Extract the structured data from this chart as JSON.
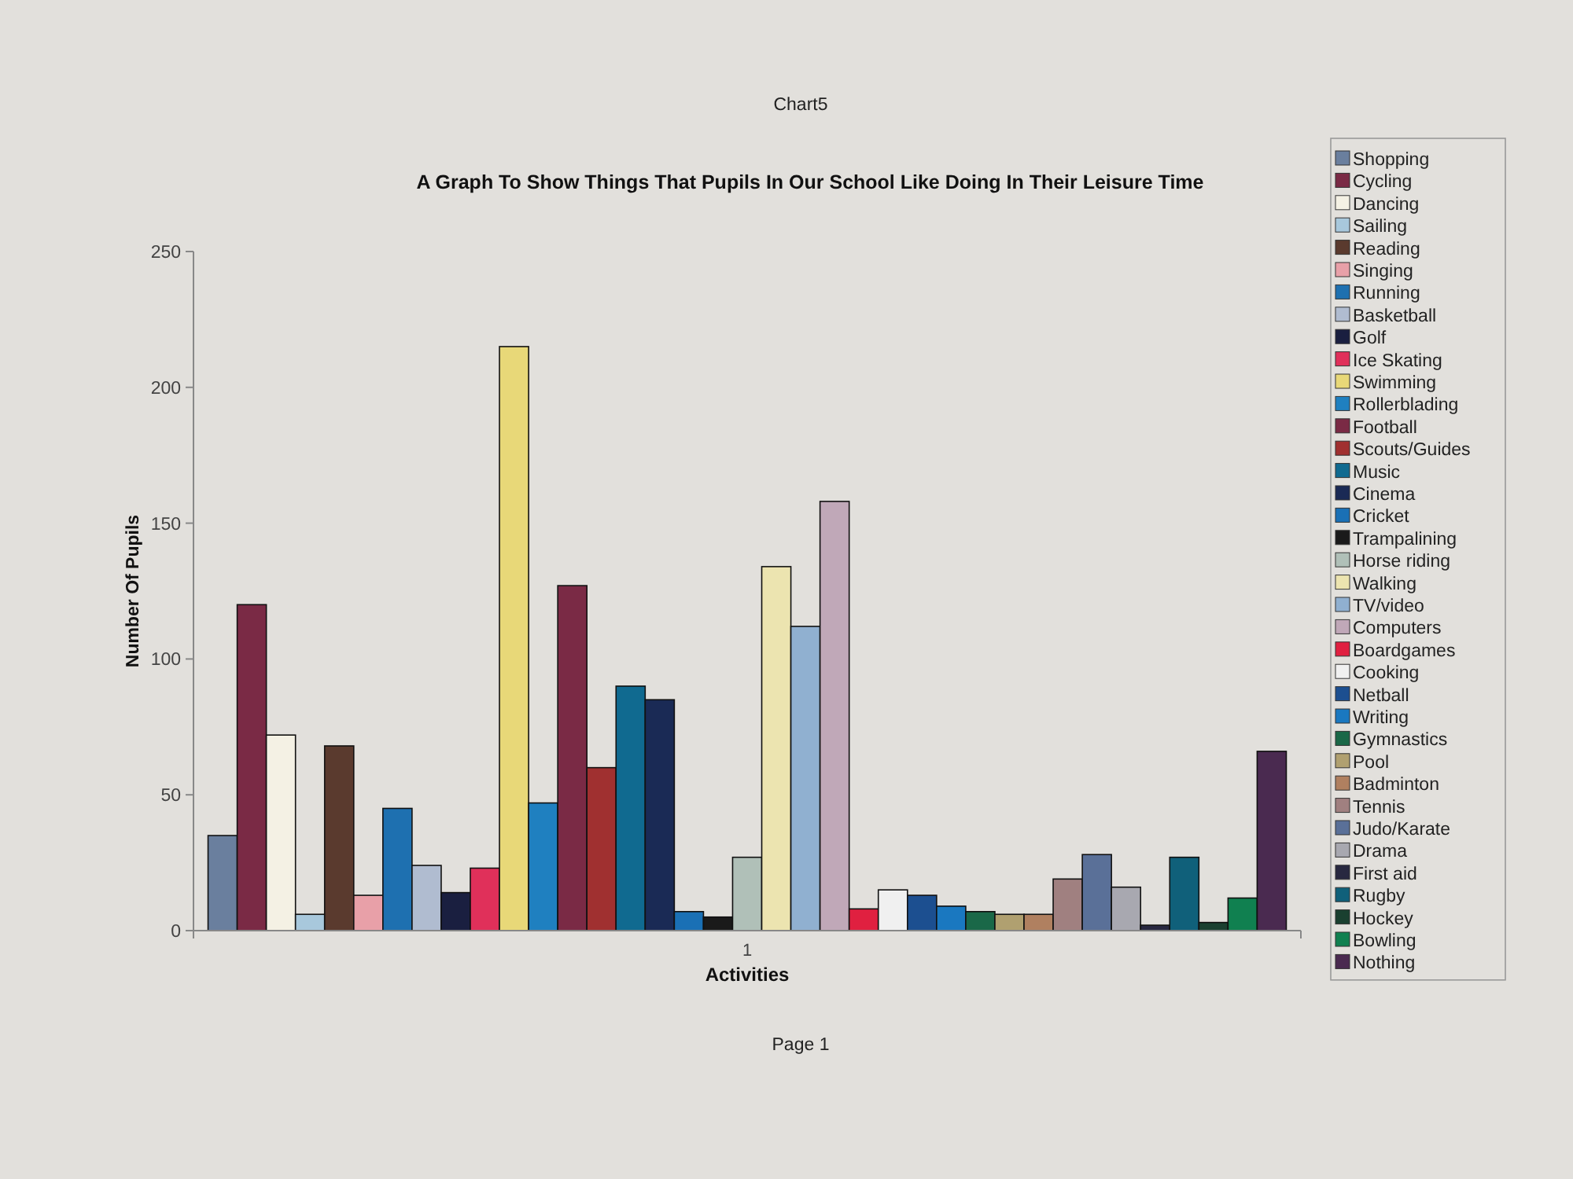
{
  "chart_data": {
    "type": "bar",
    "title": "A Graph To Show Things That Pupils In Our School Like Doing In Their Leisure Time",
    "xlabel": "Activities",
    "ylabel": "Number Of Pupils",
    "annotations": [
      "Chart5",
      "Page 1"
    ],
    "categories": [
      "1"
    ],
    "ylim": [
      0,
      250
    ],
    "yticks": [
      0,
      50,
      100,
      150,
      200,
      250
    ],
    "legend": "right",
    "series": [
      {
        "name": "Shopping",
        "color": "#6a7f9e",
        "values": [
          35
        ]
      },
      {
        "name": "Cycling",
        "color": "#7a2a45",
        "values": [
          120
        ]
      },
      {
        "name": "Dancing",
        "color": "#f4f1e4",
        "values": [
          72
        ]
      },
      {
        "name": "Sailing",
        "color": "#a8c8dc",
        "values": [
          6
        ]
      },
      {
        "name": "Reading",
        "color": "#5a3a2e",
        "values": [
          68
        ]
      },
      {
        "name": "Singing",
        "color": "#e8a0a8",
        "values": [
          13
        ]
      },
      {
        "name": "Running",
        "color": "#1e70b0",
        "values": [
          45
        ]
      },
      {
        "name": "Basketball",
        "color": "#b0bcd0",
        "values": [
          24
        ]
      },
      {
        "name": "Golf",
        "color": "#1a1f40",
        "values": [
          14
        ]
      },
      {
        "name": "Ice Skating",
        "color": "#e0305a",
        "values": [
          23
        ]
      },
      {
        "name": "Swimming",
        "color": "#e8d878",
        "values": [
          215
        ]
      },
      {
        "name": "Rollerblading",
        "color": "#1f80c0",
        "values": [
          47
        ]
      },
      {
        "name": "Football",
        "color": "#7a2a45",
        "values": [
          127
        ]
      },
      {
        "name": "Scouts/Guides",
        "color": "#a03030",
        "values": [
          60
        ]
      },
      {
        "name": "Music",
        "color": "#106a90",
        "values": [
          90
        ]
      },
      {
        "name": "Cinema",
        "color": "#1a2a55",
        "values": [
          85
        ]
      },
      {
        "name": "Cricket",
        "color": "#1a70b5",
        "values": [
          7
        ]
      },
      {
        "name": "Trampalining",
        "color": "#1a1a1a",
        "values": [
          5
        ]
      },
      {
        "name": "Horse riding",
        "color": "#b0c0b8",
        "values": [
          27
        ]
      },
      {
        "name": "Walking",
        "color": "#ece4b0",
        "values": [
          134
        ]
      },
      {
        "name": "TV/video",
        "color": "#90b0d0",
        "values": [
          112
        ]
      },
      {
        "name": "Computers",
        "color": "#c0a8b8",
        "values": [
          158
        ]
      },
      {
        "name": "Boardgames",
        "color": "#e02040",
        "values": [
          8
        ]
      },
      {
        "name": "Cooking",
        "color": "#f0f0f0",
        "values": [
          15
        ]
      },
      {
        "name": "Netball",
        "color": "#1c4f90",
        "values": [
          13
        ]
      },
      {
        "name": "Writing",
        "color": "#1a78c0",
        "values": [
          9
        ]
      },
      {
        "name": "Gymnastics",
        "color": "#1a6848",
        "values": [
          7
        ]
      },
      {
        "name": "Pool",
        "color": "#b0a070",
        "values": [
          6
        ]
      },
      {
        "name": "Badminton",
        "color": "#b08060",
        "values": [
          6
        ]
      },
      {
        "name": "Tennis",
        "color": "#a08080",
        "values": [
          19
        ]
      },
      {
        "name": "Judo/Karate",
        "color": "#5a7098",
        "values": [
          28
        ]
      },
      {
        "name": "Drama",
        "color": "#a8a8b0",
        "values": [
          16
        ]
      },
      {
        "name": "First aid",
        "color": "#282840",
        "values": [
          2
        ]
      },
      {
        "name": "Rugby",
        "color": "#10607a",
        "values": [
          27
        ]
      },
      {
        "name": "Hockey",
        "color": "#1a4030",
        "values": [
          3
        ]
      },
      {
        "name": "Bowling",
        "color": "#108050",
        "values": [
          12
        ]
      },
      {
        "name": "Nothing",
        "color": "#4a2a50",
        "values": [
          66
        ]
      }
    ]
  }
}
